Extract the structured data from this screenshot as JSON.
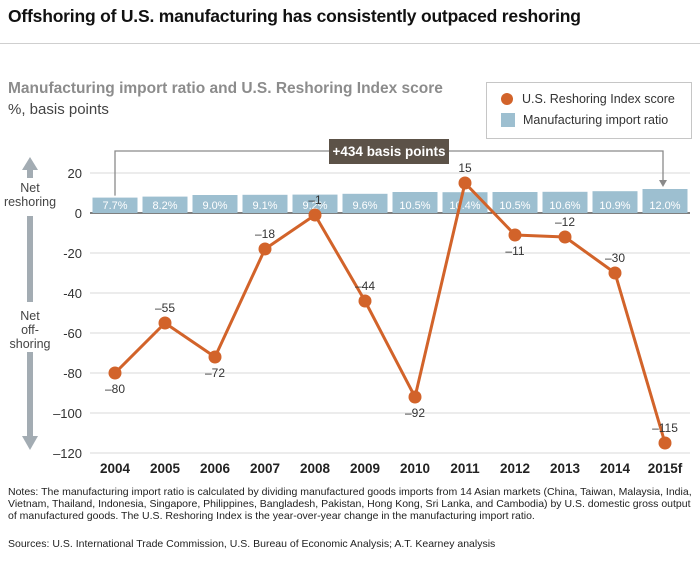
{
  "header": {
    "title": "Offshoring of U.S. manufacturing has consistently outpaced reshoring"
  },
  "chart_data": {
    "type": "bar+line",
    "title": "Manufacturing import ratio and U.S. Reshoring Index score",
    "units": "%, basis points",
    "categories": [
      "2004",
      "2005",
      "2006",
      "2007",
      "2008",
      "2009",
      "2010",
      "2011",
      "2012",
      "2013",
      "2014",
      "2015f"
    ],
    "series": [
      {
        "name": "Manufacturing import ratio",
        "kind": "bar",
        "values": [
          7.7,
          8.2,
          9.0,
          9.1,
          9.2,
          9.6,
          10.5,
          10.4,
          10.5,
          10.6,
          10.9,
          12.0
        ],
        "labels": [
          "7.7%",
          "8.2%",
          "9.0%",
          "9.1%",
          "9.2%",
          "9.6%",
          "10.5%",
          "10.4%",
          "10.5%",
          "10.6%",
          "10.9%",
          "12.0%"
        ],
        "color": "#9dbfd0"
      },
      {
        "name": "U.S. Reshoring Index score",
        "kind": "line",
        "values": [
          -80,
          -55,
          -72,
          -18,
          -1,
          -44,
          -92,
          15,
          -11,
          -12,
          -30,
          -115
        ],
        "labels": [
          "–80",
          "–55",
          "–72",
          "–18",
          "–1",
          "–44",
          "–92",
          "15",
          "–11",
          "–12",
          "–30",
          "–115"
        ],
        "color": "#d2632a"
      }
    ],
    "yticks": [
      20,
      0,
      -20,
      -40,
      -60,
      -80,
      -100,
      -120
    ],
    "ytick_labels": [
      "20",
      "0",
      "-20",
      "-40",
      "-60",
      "-80",
      "–100",
      "–120"
    ],
    "ylim": [
      -120,
      20
    ],
    "annotation": "+434 basis points",
    "side_labels": {
      "top": [
        "Net",
        "reshoring"
      ],
      "bottom": [
        "Net",
        "off-",
        "shoring"
      ]
    },
    "colors": {
      "line": "#d2632a",
      "bar": "#9dbfd0",
      "arrow": "#a3acb3",
      "annotation_bg": "#5c5248",
      "bracket": "#8a8a8a"
    }
  },
  "legend": {
    "items": [
      {
        "label": "U.S. Reshoring Index score",
        "shape": "circle",
        "color": "#d2632a"
      },
      {
        "label": "Manufacturing import ratio",
        "shape": "square",
        "color": "#9dbfd0"
      }
    ]
  },
  "notes": {
    "footnote": "Notes: The manufacturing import ratio is calculated by dividing manufactured goods imports from 14 Asian markets (China, Taiwan, Malaysia, India, Vietnam, Thailand, Indonesia, Singapore, Philippines, Bangladesh, Pakistan, Hong Kong, Sri Lanka, and Cambodia) by U.S. domestic gross output of manufactured goods. The U.S. Reshoring Index is the year-over-year change in the manufacturing import ratio.",
    "sources": "Sources: U.S. International Trade Commission, U.S. Bureau of Economic Analysis; A.T. Kearney analysis"
  }
}
